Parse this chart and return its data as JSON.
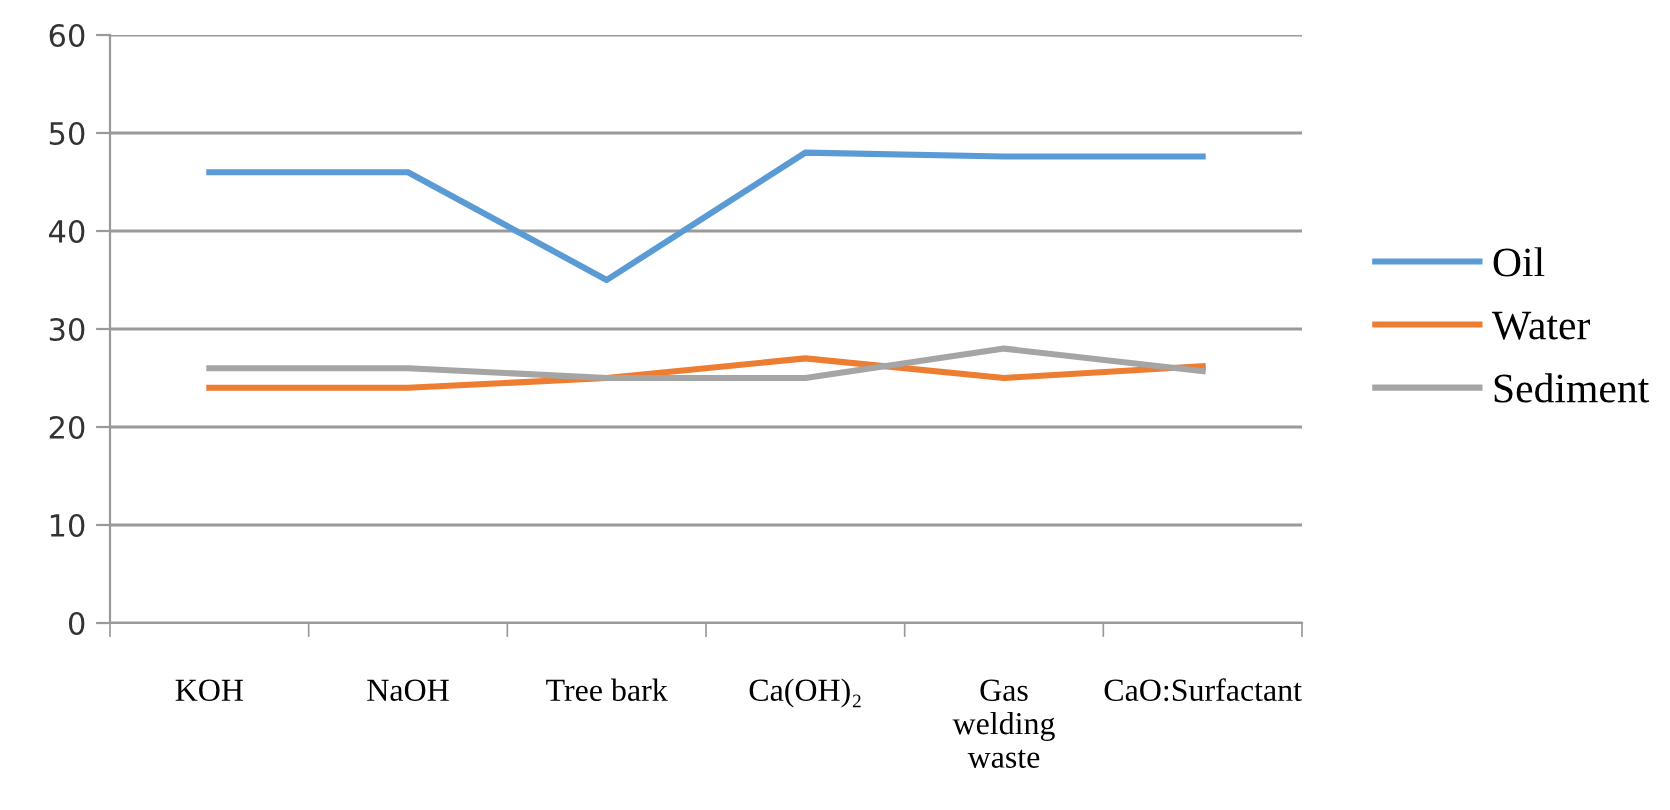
{
  "chart_data": {
    "type": "line",
    "categories": [
      "KOH",
      "NaOH",
      "Tree bark",
      "Ca(OH)₂",
      "Gas welding waste",
      "CaO:Surfactant"
    ],
    "series": [
      {
        "name": "Oil",
        "color": "#5b9bd5",
        "values": [
          46,
          46,
          35,
          48,
          47.6,
          47.6
        ]
      },
      {
        "name": "Water",
        "color": "#ed7d31",
        "values": [
          24,
          24,
          25,
          27,
          25,
          26.2
        ]
      },
      {
        "name": "Sediment",
        "color": "#a5a5a5",
        "values": [
          26,
          26,
          25,
          25,
          28,
          25.7
        ]
      }
    ],
    "ylim": [
      0,
      60
    ],
    "yticks": [
      0,
      10,
      20,
      30,
      40,
      50,
      60
    ],
    "grid": "y",
    "legend": "right",
    "marker": "none",
    "line_style": "solid"
  }
}
